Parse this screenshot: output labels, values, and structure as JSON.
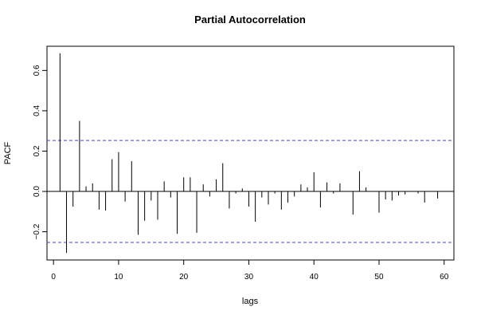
{
  "chart_data": {
    "type": "bar",
    "title": "Partial Autocorrelation",
    "xlabel": "lags",
    "ylabel": "PACF",
    "xlim": [
      -1,
      61.5
    ],
    "ylim": [
      -0.34,
      0.72
    ],
    "x_ticks": [
      0,
      10,
      20,
      30,
      40,
      50,
      60
    ],
    "y_ticks": [
      -0.2,
      0.0,
      0.2,
      0.4,
      0.6
    ],
    "y_tick_labels": [
      "−0.2",
      "0.0",
      "0.2",
      "0.4",
      "0.6"
    ],
    "confidence_bounds": [
      0.253,
      -0.253
    ],
    "confidence_color": "#4444cc",
    "bar_color": "#000000",
    "zero_line": true,
    "grid": false,
    "lags": [
      1,
      2,
      3,
      4,
      5,
      6,
      7,
      8,
      9,
      10,
      11,
      12,
      13,
      14,
      15,
      16,
      17,
      18,
      19,
      20,
      21,
      22,
      23,
      24,
      25,
      26,
      27,
      28,
      29,
      30,
      31,
      32,
      33,
      34,
      35,
      36,
      37,
      38,
      39,
      40,
      41,
      42,
      43,
      44,
      45,
      46,
      47,
      48,
      49,
      50,
      51,
      52,
      53,
      54,
      55,
      56,
      57,
      58,
      59
    ],
    "values": [
      0.685,
      -0.305,
      -0.075,
      0.35,
      0.025,
      0.04,
      -0.09,
      -0.095,
      0.16,
      0.195,
      -0.05,
      0.15,
      -0.215,
      -0.145,
      -0.045,
      -0.14,
      0.05,
      -0.03,
      -0.21,
      0.07,
      0.07,
      -0.205,
      0.035,
      -0.025,
      0.06,
      0.14,
      -0.085,
      -0.01,
      0.015,
      -0.075,
      -0.15,
      -0.03,
      -0.065,
      -0.01,
      -0.09,
      -0.055,
      -0.025,
      0.035,
      0.02,
      0.095,
      -0.08,
      0.045,
      -0.01,
      0.04,
      0.0,
      -0.115,
      0.1,
      0.02,
      0.0,
      -0.105,
      -0.04,
      -0.045,
      -0.02,
      -0.015,
      0.0,
      -0.01,
      -0.055,
      0.0,
      -0.035
    ]
  }
}
